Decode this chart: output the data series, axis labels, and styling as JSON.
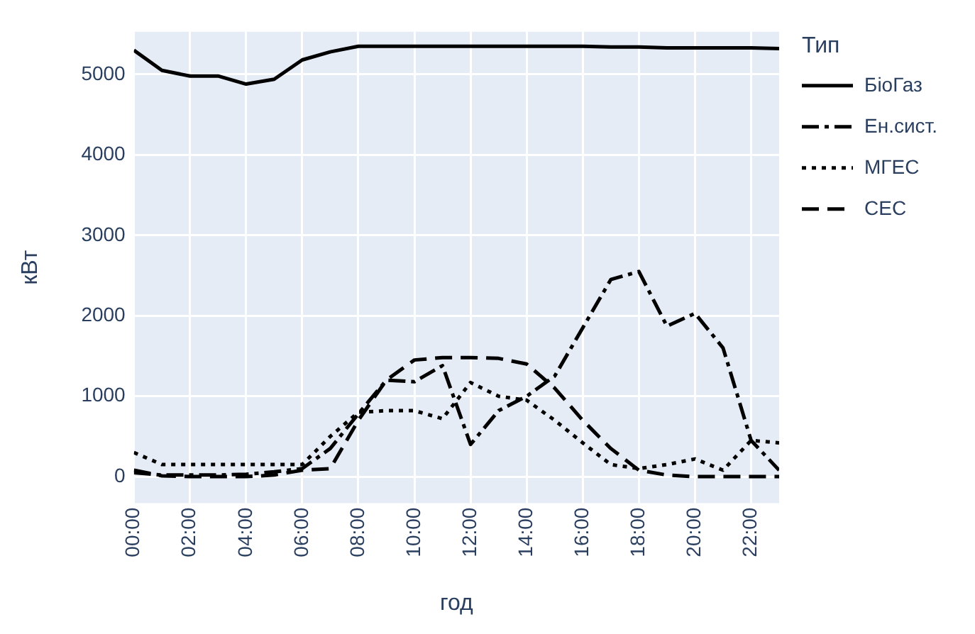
{
  "chart_data": {
    "type": "line",
    "xlabel": "год",
    "ylabel": "кВт",
    "legend_title": "Тип",
    "x": [
      0,
      1,
      2,
      3,
      4,
      5,
      6,
      7,
      8,
      9,
      10,
      11,
      12,
      13,
      14,
      15,
      16,
      17,
      18,
      19,
      20,
      21,
      22,
      23
    ],
    "series": [
      {
        "name": "БіоГаз",
        "color": "#000000",
        "line_style": "solid",
        "values": [
          5300,
          5050,
          4980,
          4980,
          4880,
          4940,
          5180,
          5280,
          5350,
          5350,
          5350,
          5350,
          5350,
          5350,
          5350,
          5350,
          5350,
          5340,
          5340,
          5330,
          5330,
          5330,
          5330,
          5320
        ]
      },
      {
        "name": "Ен.сист.",
        "color": "#000000",
        "line_style": "dashdot",
        "values": [
          50,
          20,
          20,
          20,
          30,
          60,
          100,
          350,
          780,
          1200,
          1180,
          1380,
          400,
          820,
          1000,
          1250,
          1850,
          2450,
          2550,
          1870,
          2030,
          1600,
          450,
          80
        ]
      },
      {
        "name": "МГЕС",
        "color": "#000000",
        "line_style": "dotted",
        "values": [
          300,
          150,
          150,
          150,
          150,
          150,
          150,
          500,
          800,
          820,
          820,
          720,
          1170,
          1000,
          950,
          700,
          420,
          150,
          100,
          150,
          220,
          80,
          450,
          420
        ]
      },
      {
        "name": "СЕС",
        "color": "#000000",
        "line_style": "dashed",
        "values": [
          80,
          10,
          0,
          0,
          0,
          20,
          80,
          100,
          700,
          1200,
          1450,
          1480,
          1480,
          1470,
          1400,
          1100,
          700,
          350,
          80,
          20,
          0,
          0,
          0,
          0
        ]
      }
    ],
    "xlim": [
      0,
      23
    ],
    "xticks": [
      {
        "value": 0,
        "label": "00:00"
      },
      {
        "value": 2,
        "label": "02:00"
      },
      {
        "value": 4,
        "label": "04:00"
      },
      {
        "value": 6,
        "label": "06:00"
      },
      {
        "value": 8,
        "label": "08:00"
      },
      {
        "value": 10,
        "label": "10:00"
      },
      {
        "value": 12,
        "label": "12:00"
      },
      {
        "value": 14,
        "label": "14:00"
      },
      {
        "value": 16,
        "label": "16:00"
      },
      {
        "value": 18,
        "label": "18:00"
      },
      {
        "value": 20,
        "label": "20:00"
      },
      {
        "value": 22,
        "label": "22:00"
      }
    ],
    "ylim": [
      -330,
      5530
    ],
    "yticks": [
      0,
      1000,
      2000,
      3000,
      4000,
      5000
    ],
    "grid": true,
    "legend": "top right",
    "marker": "none"
  }
}
